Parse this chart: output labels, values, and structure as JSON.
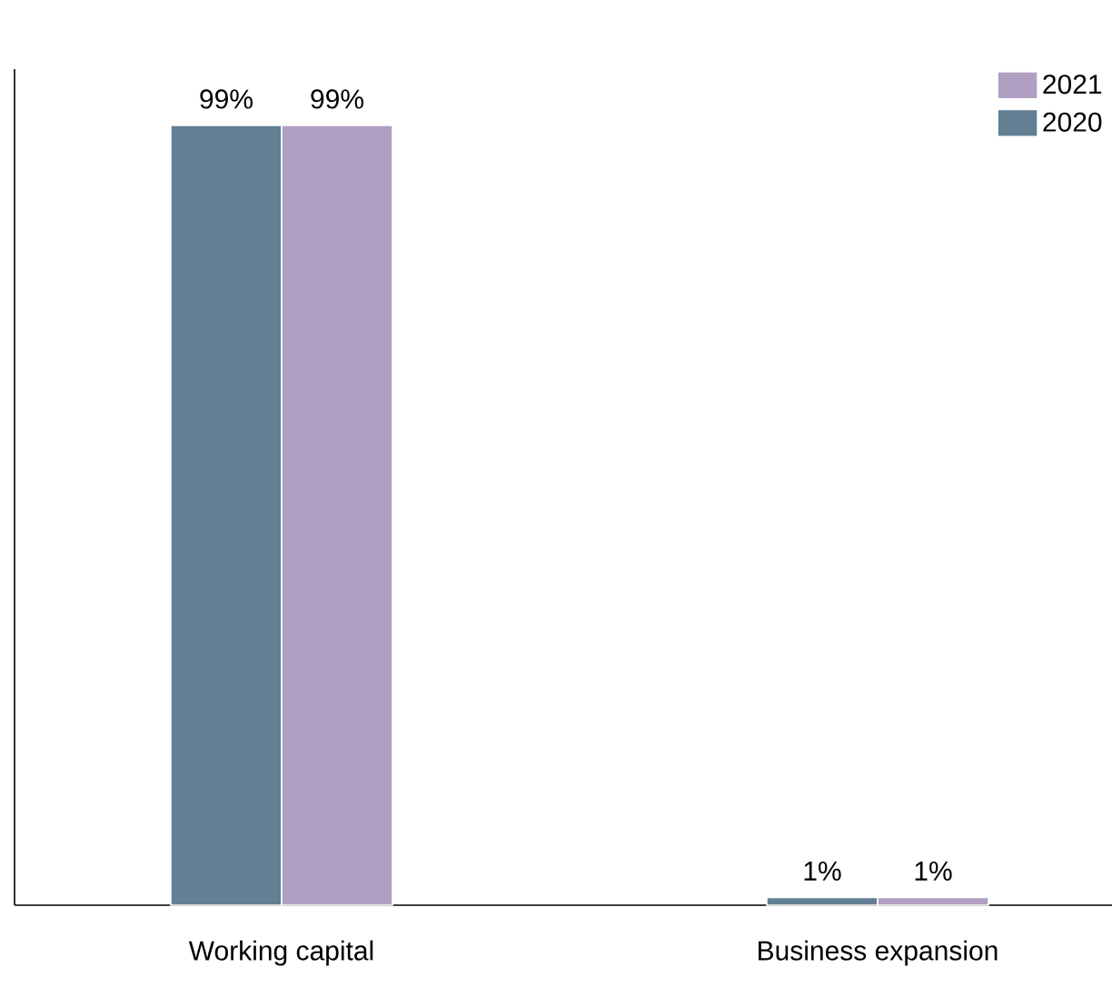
{
  "chart_data": {
    "type": "bar",
    "categories": [
      "Working capital",
      "Business expansion"
    ],
    "series": [
      {
        "name": "2020",
        "color": "#627f93",
        "values": [
          99,
          1
        ],
        "value_labels": [
          "99%",
          "1%"
        ]
      },
      {
        "name": "2021",
        "color": "#b09fc2",
        "values": [
          99,
          1
        ],
        "value_labels": [
          "99%",
          "1%"
        ]
      }
    ],
    "tick_labels": "x",
    "legend": "top right"
  }
}
